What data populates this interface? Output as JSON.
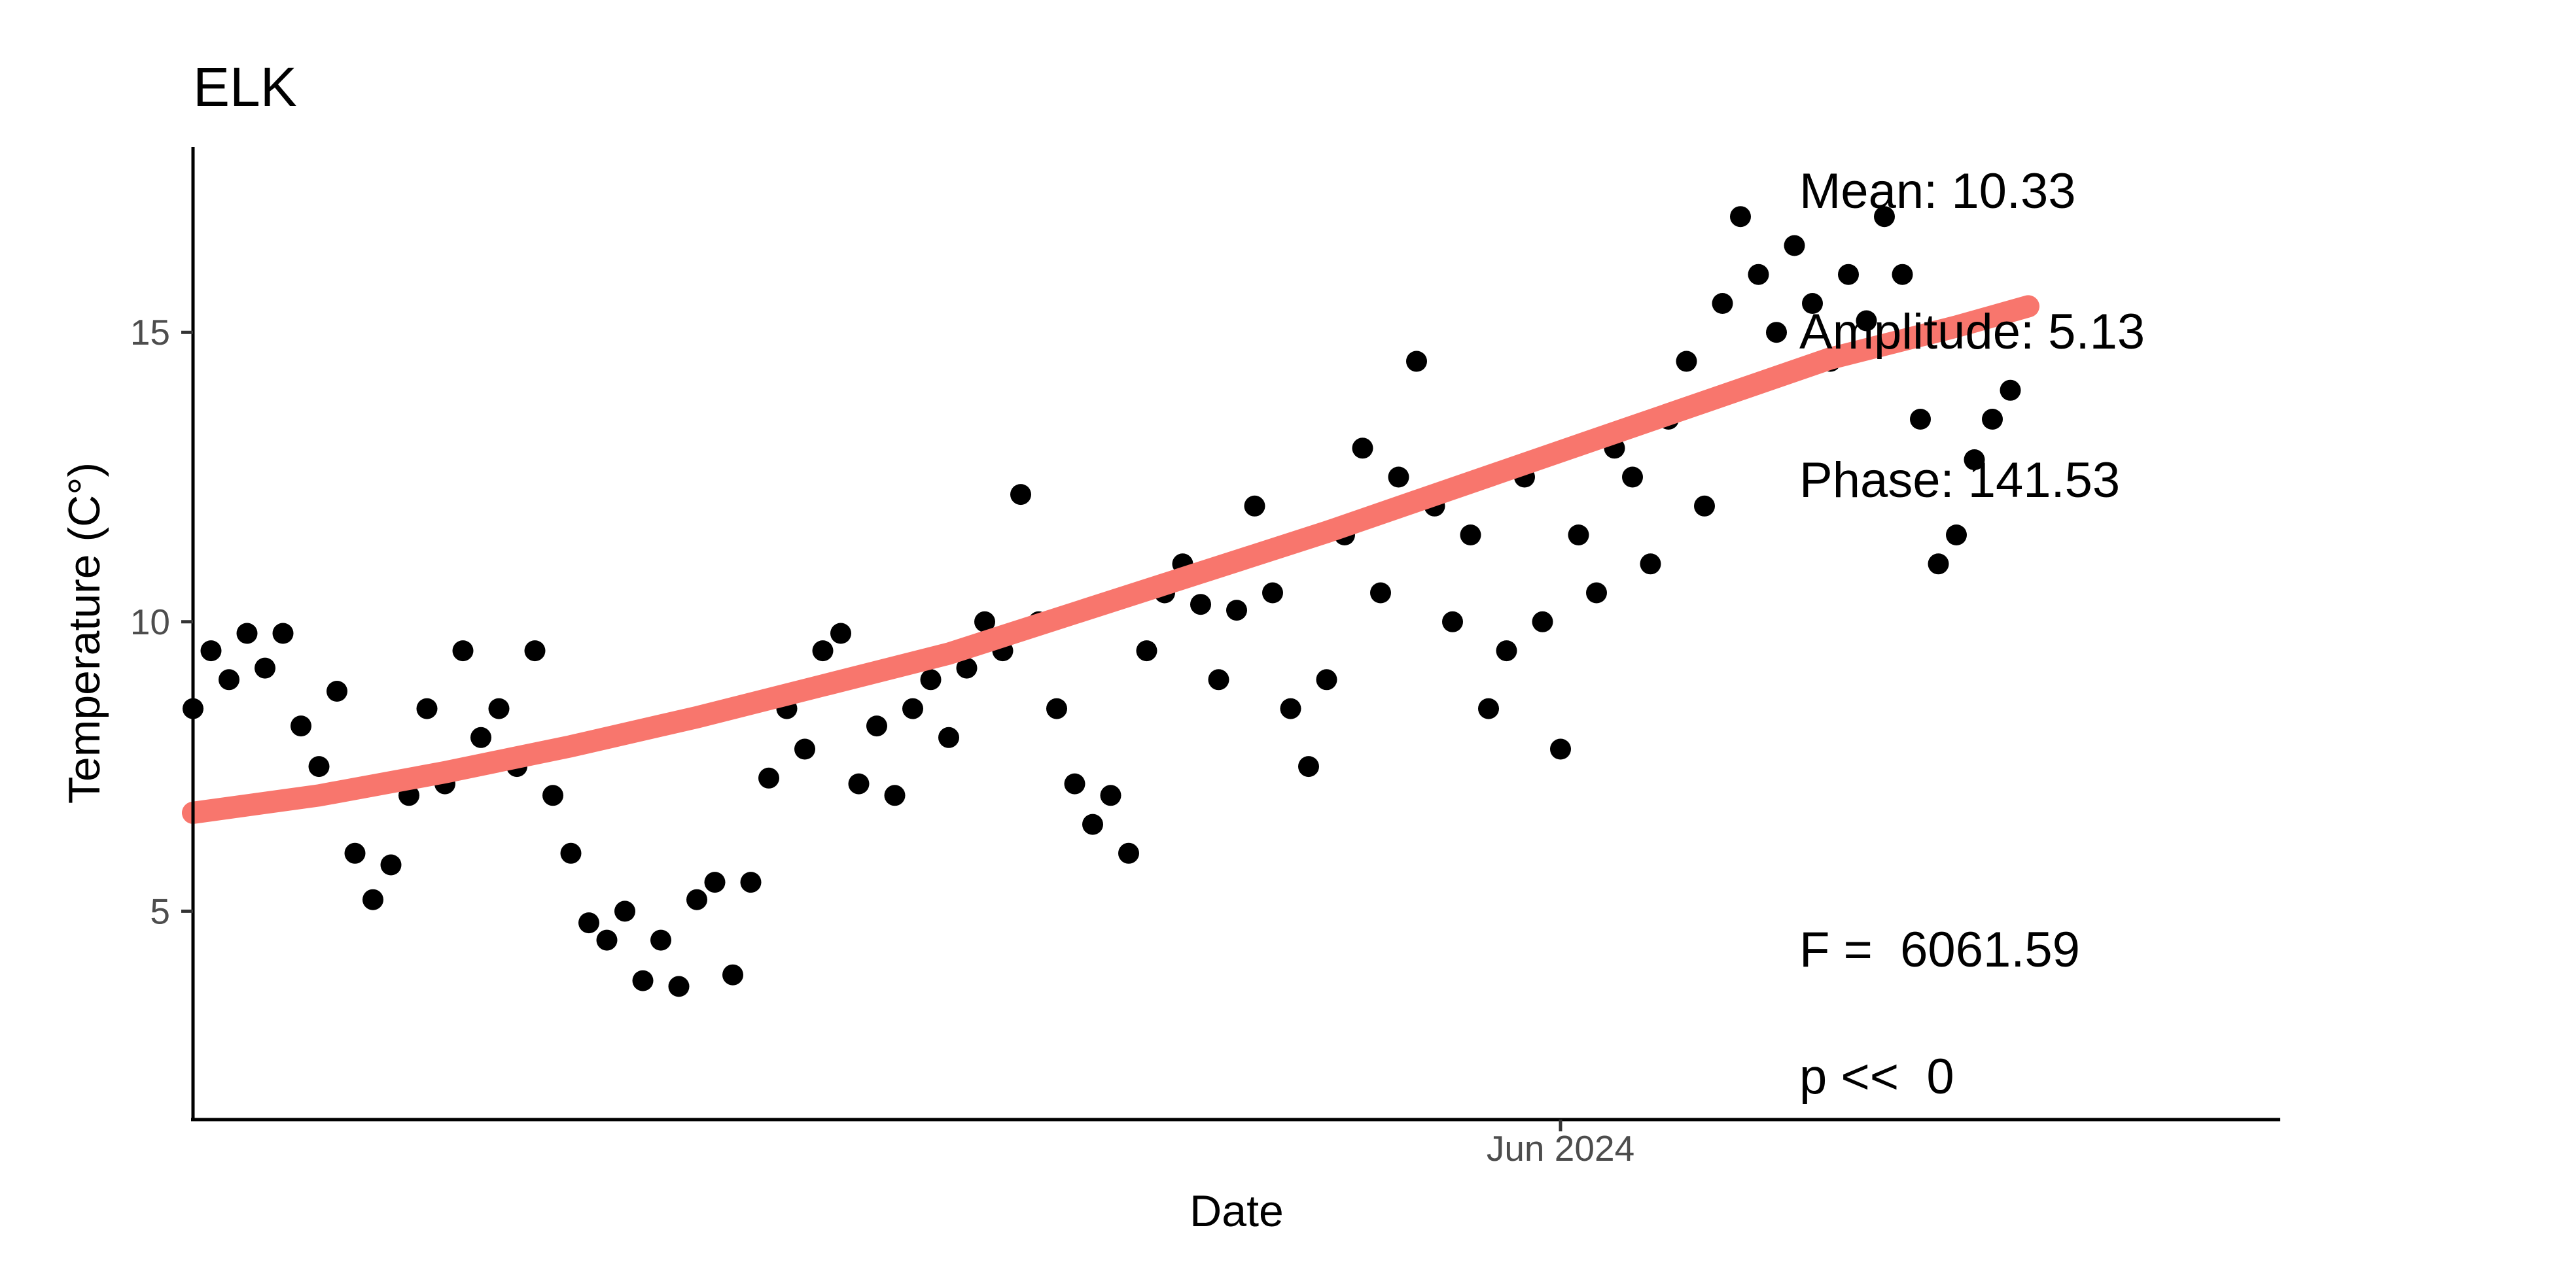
{
  "chart_data": {
    "type": "scatter",
    "title": "ELK",
    "xlabel": "Date",
    "ylabel": "Temperature (C°)",
    "x_axis_kind": "date",
    "xlim": [
      "2024-01-01",
      "2024-08-20"
    ],
    "ylim": [
      1.4,
      18.2
    ],
    "y_ticks": [
      5,
      10,
      15
    ],
    "x_ticks": [
      {
        "value": "2024-06-01",
        "label": "Jun 2024"
      }
    ],
    "grid": false,
    "legend": "none",
    "colors": {
      "points": "#000000",
      "fit": "#F8766D"
    },
    "series": [
      {
        "kind": "points",
        "x": [
          "2024-01-01",
          "2024-01-03",
          "2024-01-05",
          "2024-01-07",
          "2024-01-09",
          "2024-01-11",
          "2024-01-13",
          "2024-01-15",
          "2024-01-17",
          "2024-01-19",
          "2024-01-21",
          "2024-01-23",
          "2024-01-25",
          "2024-01-27",
          "2024-01-29",
          "2024-01-31",
          "2024-02-02",
          "2024-02-04",
          "2024-02-06",
          "2024-02-08",
          "2024-02-10",
          "2024-02-12",
          "2024-02-14",
          "2024-02-16",
          "2024-02-18",
          "2024-02-20",
          "2024-02-22",
          "2024-02-24",
          "2024-02-26",
          "2024-02-28",
          "2024-03-01",
          "2024-03-03",
          "2024-03-05",
          "2024-03-07",
          "2024-03-09",
          "2024-03-11",
          "2024-03-13",
          "2024-03-15",
          "2024-03-17",
          "2024-03-19",
          "2024-03-21",
          "2024-03-23",
          "2024-03-25",
          "2024-03-27",
          "2024-03-29",
          "2024-03-31",
          "2024-04-02",
          "2024-04-04",
          "2024-04-06",
          "2024-04-08",
          "2024-04-10",
          "2024-04-12",
          "2024-04-14",
          "2024-04-16",
          "2024-04-18",
          "2024-04-20",
          "2024-04-22",
          "2024-04-24",
          "2024-04-26",
          "2024-04-28",
          "2024-04-30",
          "2024-05-02",
          "2024-05-04",
          "2024-05-06",
          "2024-05-08",
          "2024-05-10",
          "2024-05-12",
          "2024-05-14",
          "2024-05-16",
          "2024-05-18",
          "2024-05-20",
          "2024-05-22",
          "2024-05-24",
          "2024-05-26",
          "2024-05-28",
          "2024-05-30",
          "2024-06-01",
          "2024-06-03",
          "2024-06-05",
          "2024-06-07",
          "2024-06-09",
          "2024-06-11",
          "2024-06-13",
          "2024-06-15",
          "2024-06-17",
          "2024-06-19",
          "2024-06-21",
          "2024-06-23",
          "2024-06-25",
          "2024-06-27",
          "2024-06-29",
          "2024-07-01",
          "2024-07-03",
          "2024-07-05",
          "2024-07-07",
          "2024-07-09",
          "2024-07-11",
          "2024-07-13",
          "2024-07-15",
          "2024-07-17",
          "2024-07-19",
          "2024-07-21"
        ],
        "y": [
          8.5,
          9.5,
          9.0,
          9.8,
          9.2,
          9.8,
          8.2,
          7.5,
          8.8,
          6.0,
          5.2,
          5.8,
          7.0,
          8.5,
          7.2,
          9.5,
          8.0,
          8.5,
          7.5,
          9.5,
          7.0,
          6.0,
          4.8,
          4.5,
          5.0,
          3.8,
          4.5,
          3.7,
          5.2,
          5.5,
          3.9,
          5.5,
          7.3,
          8.5,
          7.8,
          9.5,
          9.8,
          7.2,
          8.2,
          7.0,
          8.5,
          9.0,
          8.0,
          9.2,
          10.0,
          9.5,
          12.2,
          10.0,
          8.5,
          7.2,
          6.5,
          7.0,
          6.0,
          9.5,
          10.5,
          11.0,
          10.3,
          9.0,
          10.2,
          12.0,
          10.5,
          8.5,
          7.5,
          9.0,
          11.5,
          13.0,
          10.5,
          12.5,
          14.5,
          12.0,
          10.0,
          11.5,
          8.5,
          9.5,
          12.5,
          10.0,
          7.8,
          11.5,
          10.5,
          13.0,
          12.5,
          11.0,
          13.5,
          14.5,
          12.0,
          15.5,
          17.0,
          16.0,
          15.0,
          16.5,
          15.5,
          14.5,
          16.0,
          15.2,
          17.0,
          16.0,
          13.5,
          11.0,
          11.5,
          12.8,
          13.5,
          14.0
        ]
      },
      {
        "kind": "fit-curve",
        "x": [
          "2024-01-01",
          "2024-01-15",
          "2024-01-29",
          "2024-02-12",
          "2024-02-26",
          "2024-03-11",
          "2024-03-25",
          "2024-04-08",
          "2024-04-22",
          "2024-05-06",
          "2024-05-20",
          "2024-06-03",
          "2024-06-17",
          "2024-07-01",
          "2024-07-15",
          "2024-07-23"
        ],
        "y": [
          6.7,
          7.0,
          7.4,
          7.85,
          8.35,
          8.9,
          9.45,
          10.15,
          10.85,
          11.55,
          12.3,
          13.05,
          13.8,
          14.55,
          15.1,
          15.45
        ]
      }
    ],
    "annotations": [
      "Mean: 10.33",
      "Amplitude: 5.13",
      "Phase: 141.53",
      "F =  6061.59",
      "p <<  0"
    ]
  }
}
